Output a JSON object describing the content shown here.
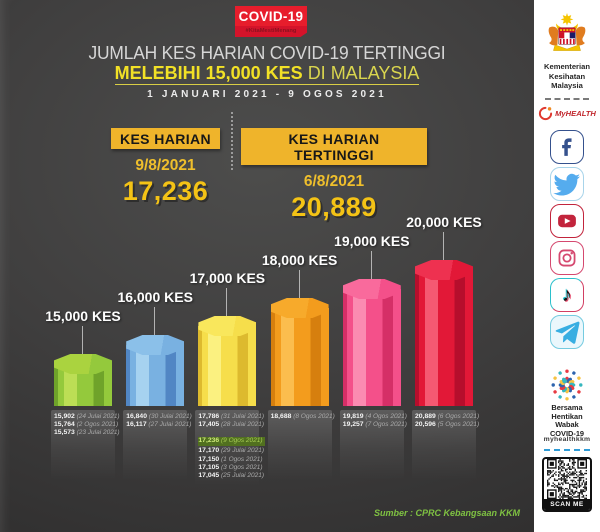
{
  "badge": {
    "title": "COVID-19",
    "hashtag": "#KitaMestiMenang"
  },
  "header": {
    "title": "JUMLAH KES HARIAN COVID-19 TERTINGGI",
    "highlight": "MELEBIHI 15,000 KES",
    "location": "DI MALAYSIA",
    "date_range": "1 JANUARI 2021 - 9 OGOS 2021"
  },
  "stats": [
    {
      "label": "KES HARIAN",
      "date": "9/8/2021",
      "value": "17,236"
    },
    {
      "label": "KES HARIAN TERTINGGI",
      "date": "6/8/2021",
      "value": "20,889"
    }
  ],
  "chart_data": {
    "type": "bar",
    "title": "Jumlah kes harian COVID-19 tertinggi melebihi 15,000 kes di Malaysia",
    "categories": [
      "15,000 KES",
      "16,000 KES",
      "17,000 KES",
      "18,000 KES",
      "19,000 KES",
      "20,000 KES"
    ],
    "values": [
      15000,
      16000,
      17000,
      18000,
      19000,
      20000
    ],
    "bars": [
      {
        "label": "15,000 KES",
        "value": 15000,
        "colors": {
          "cap": "#AAD33F",
          "light": "#BCDE55",
          "mid": "#94C93C",
          "dark": "#6FA32A"
        },
        "records": [
          {
            "value": "15,902",
            "date": "(24 Julai 2021)"
          },
          {
            "value": "15,764",
            "date": "(2 Ogos 2021)"
          },
          {
            "value": "15,573",
            "date": "(23 Julai 2021)"
          }
        ]
      },
      {
        "label": "16,000 KES",
        "value": 16000,
        "colors": {
          "cap": "#8BC0E9",
          "light": "#A6D2F0",
          "mid": "#79B1E1",
          "dark": "#5186C4"
        },
        "records": [
          {
            "value": "16,840",
            "date": "(30 Julai 2021)"
          },
          {
            "value": "16,117",
            "date": "(27 Julai 2021)"
          }
        ]
      },
      {
        "label": "17,000 KES",
        "value": 17000,
        "colors": {
          "cap": "#F9E75C",
          "light": "#FBF180",
          "mid": "#F6DE4B",
          "dark": "#DDBA2E"
        },
        "records": [
          {
            "value": "17,786",
            "date": "(31 Julai 2021)"
          },
          {
            "value": "17,405",
            "date": "(28 Julai 2021)"
          },
          {
            "value": "17,236",
            "date": "(9 Ogos 2021)",
            "highlight": true
          },
          {
            "value": "17,170",
            "date": "(29 Julai 2021)"
          },
          {
            "value": "17,150",
            "date": "(1 Ogos 2021)"
          },
          {
            "value": "17,105",
            "date": "(3 Ogos 2021)"
          },
          {
            "value": "17,045",
            "date": "(25 Julai 2021)"
          }
        ]
      },
      {
        "label": "18,000 KES",
        "value": 18000,
        "colors": {
          "cap": "#F7AA2B",
          "light": "#FBBD4E",
          "mid": "#F39C1D",
          "dark": "#D67F0E"
        },
        "records": [
          {
            "value": "18,688",
            "date": "(8 Ogos 2021)"
          }
        ]
      },
      {
        "label": "19,000 KES",
        "value": 19000,
        "colors": {
          "cap": "#F96A9C",
          "light": "#FB8BB1",
          "mid": "#F4508A",
          "dark": "#D52F67"
        },
        "records": [
          {
            "value": "19,819",
            "date": "(4 Ogos 2021)"
          },
          {
            "value": "19,257",
            "date": "(7 Ogos 2021)"
          }
        ]
      },
      {
        "label": "20,000 KES",
        "value": 20000,
        "colors": {
          "cap": "#EE3150",
          "light": "#F55972",
          "mid": "#E21837",
          "dark": "#B60E2C"
        },
        "records": [
          {
            "value": "20,889",
            "date": "(6 Ogos 2021)"
          },
          {
            "value": "20,596",
            "date": "(5 Ogos 2021)"
          }
        ]
      }
    ]
  },
  "source": "Sumber : CPRC Kebangsaan KKM",
  "sidebar": {
    "ministry_lines": [
      "Kementerian",
      "Kesihatan",
      "Malaysia"
    ],
    "myhealth_label": "MyHEALTH",
    "social_icons": [
      "facebook",
      "twitter",
      "youtube",
      "instagram",
      "tiktok",
      "telegram"
    ],
    "bersama_lines": [
      "Bersama",
      "Hentikan",
      "Wabak",
      "COVID-19"
    ],
    "handle": "myhealthkkm",
    "scan_label": "SCAN ME"
  },
  "colors": {
    "accent_yellow": "#EFB42B",
    "accent_green_source": "#7FC242",
    "badge_red": "#E71D2C",
    "highlight_row_bg": "#51701F"
  }
}
